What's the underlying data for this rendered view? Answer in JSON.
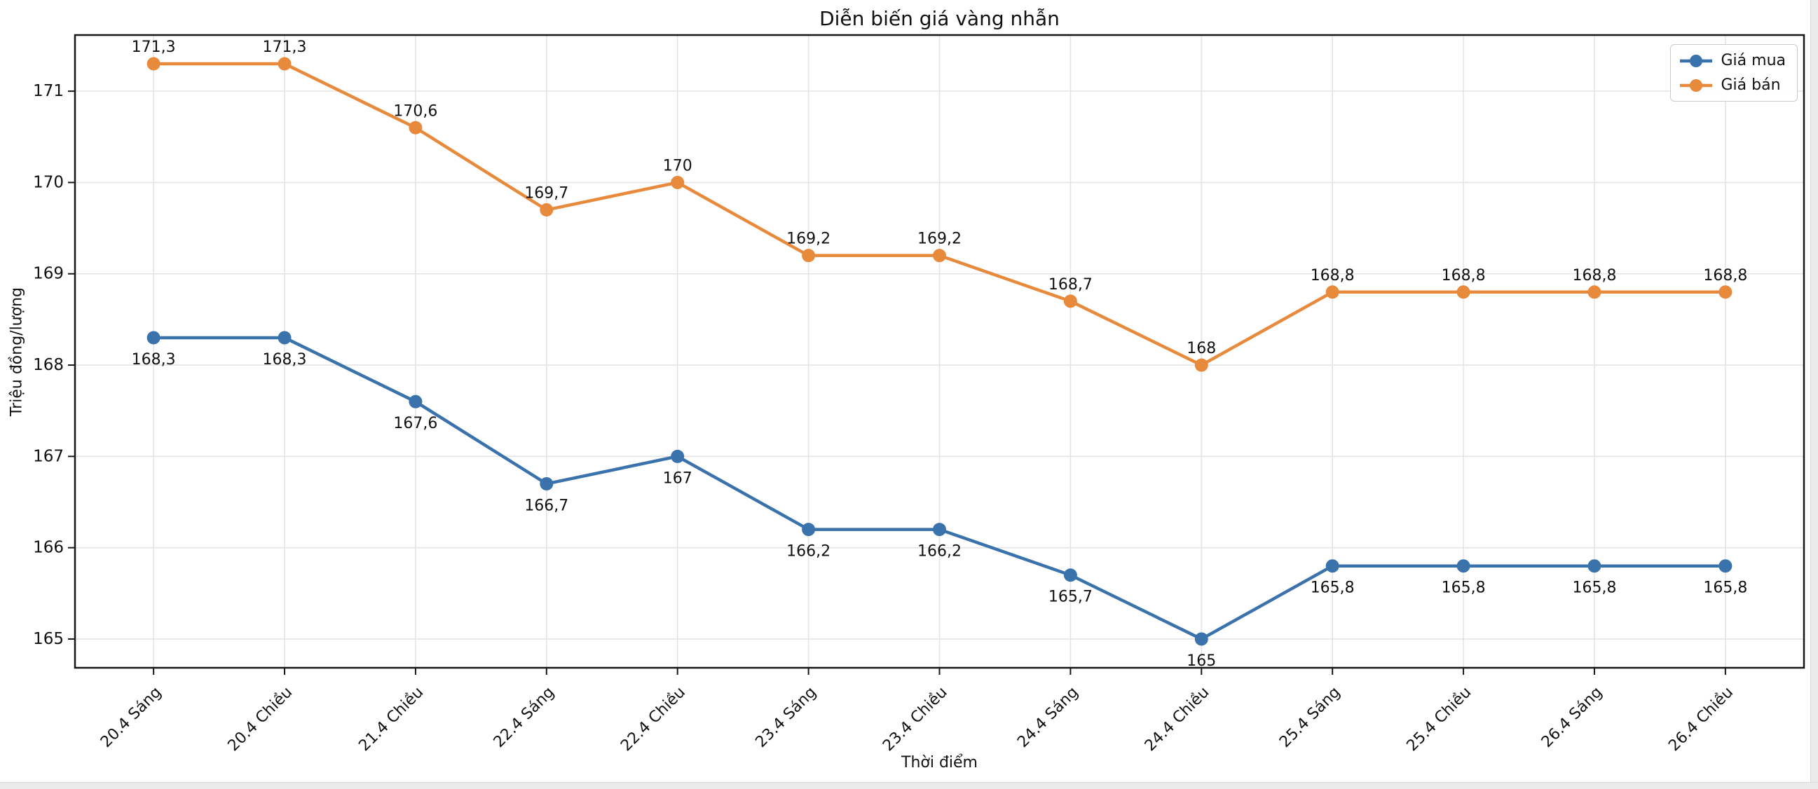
{
  "chart_data": {
    "type": "line",
    "title": "Diễn biến giá vàng nhẫn",
    "xlabel": "Thời điểm",
    "ylabel": "Triệu đồng/lượng",
    "categories": [
      "20.4 Sáng",
      "20.4 Chiều",
      "21.4 Chiều",
      "22.4 Sáng",
      "22.4 Chiều",
      "23.4 Sáng",
      "23.4 Chiều",
      "24.4 Sáng",
      "24.4 Chiều",
      "25.4 Sáng",
      "25.4 Chiều",
      "26.4 Sáng",
      "26.4 Chiều"
    ],
    "series": [
      {
        "name": "Giá mua",
        "color": "#3a72ac",
        "marker": "circle",
        "label_position": "below",
        "values": [
          168.3,
          168.3,
          167.6,
          166.7,
          167,
          166.2,
          166.2,
          165.7,
          165,
          165.8,
          165.8,
          165.8,
          165.8
        ],
        "labels": [
          "168,3",
          "168,3",
          "167,6",
          "166,7",
          "167",
          "166,2",
          "166,2",
          "165,7",
          "165",
          "165,8",
          "165,8",
          "165,8",
          "165,8"
        ]
      },
      {
        "name": "Giá bán",
        "color": "#e78a3c",
        "marker": "circle",
        "label_position": "above",
        "values": [
          171.3,
          171.3,
          170.6,
          169.7,
          170,
          169.2,
          169.2,
          168.7,
          168,
          168.8,
          168.8,
          168.8,
          168.8
        ],
        "labels": [
          "171,3",
          "171,3",
          "170,6",
          "169,7",
          "170",
          "169,2",
          "169,2",
          "168,7",
          "168",
          "168,8",
          "168,8",
          "168,8",
          "168,8"
        ]
      }
    ],
    "yticks": [
      165,
      166,
      167,
      168,
      169,
      170,
      171
    ],
    "ylim": [
      164.685,
      171.615
    ],
    "grid": true,
    "legend_position": "top-right",
    "colors": {
      "grid": "#e4e4e4",
      "spine": "#161616",
      "text": "#111111"
    }
  }
}
